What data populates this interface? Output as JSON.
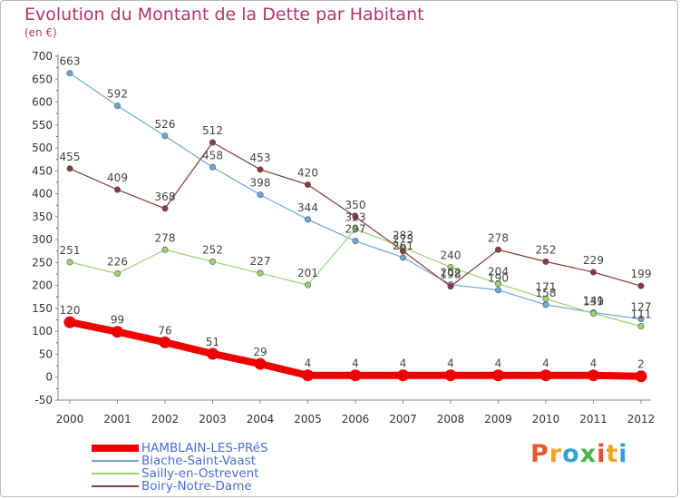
{
  "title": "Evolution du Montant de la Dette par Habitant",
  "subtitle": "(en €)",
  "brand": {
    "letters": [
      "P",
      "r",
      "o",
      "x",
      "i",
      "t",
      "i"
    ],
    "colors": [
      "#e85a2a",
      "#f3a21c",
      "#35a0d8",
      "#4ab54a",
      "#e84a3a",
      "#f3a21c",
      "#35a0d8"
    ]
  },
  "chart_data": {
    "type": "line",
    "x": [
      "2000",
      "2001",
      "2002",
      "2003",
      "2004",
      "2005",
      "2006",
      "2007",
      "2008",
      "2009",
      "2010",
      "2011",
      "2012"
    ],
    "ylim": [
      -50,
      700
    ],
    "yticks": [
      "-50",
      "0",
      "50",
      "100",
      "150",
      "200",
      "250",
      "300",
      "350",
      "400",
      "450",
      "500",
      "550",
      "600",
      "650",
      "700"
    ],
    "grid": false,
    "legend_position": "bottom",
    "series": [
      {
        "name": "HAMBLAIN-LES-PRéS",
        "color": "#ee0000",
        "values": [
          120,
          99,
          76,
          51,
          29,
          4,
          4,
          4,
          4,
          4,
          4,
          4,
          2
        ],
        "labels": [
          "120",
          "99",
          "76",
          "51",
          "29",
          "4",
          "4",
          "4",
          "4",
          "4",
          "4",
          "4",
          "2"
        ]
      },
      {
        "name": "Biache-Saint-Vaast",
        "color": "#6ea6d6",
        "values": [
          663,
          592,
          526,
          458,
          398,
          344,
          297,
          261,
          202,
          190,
          158,
          141,
          127
        ],
        "labels": [
          "663",
          "592",
          "526",
          "458",
          "398",
          "344",
          "297",
          "261",
          "202",
          "190",
          "158",
          "141",
          "127"
        ]
      },
      {
        "name": "Sailly-en-Ostrevent",
        "color": "#9ad66c",
        "values": [
          251,
          226,
          278,
          252,
          227,
          201,
          323,
          283,
          240,
          204,
          171,
          139,
          111
        ],
        "labels": [
          "251",
          "226",
          "278",
          "252",
          "227",
          "201",
          "323",
          "283",
          "240",
          "204",
          "171",
          "139",
          "111"
        ]
      },
      {
        "name": "Boiry-Notre-Dame",
        "color": "#8a3a3a",
        "values": [
          455,
          409,
          368,
          512,
          453,
          420,
          350,
          275,
          198,
          278,
          252,
          229,
          199
        ],
        "labels": [
          "455",
          "409",
          "368",
          "512",
          "453",
          "420",
          "350",
          "275",
          "198",
          "278",
          "252",
          "229",
          "199"
        ]
      }
    ]
  }
}
